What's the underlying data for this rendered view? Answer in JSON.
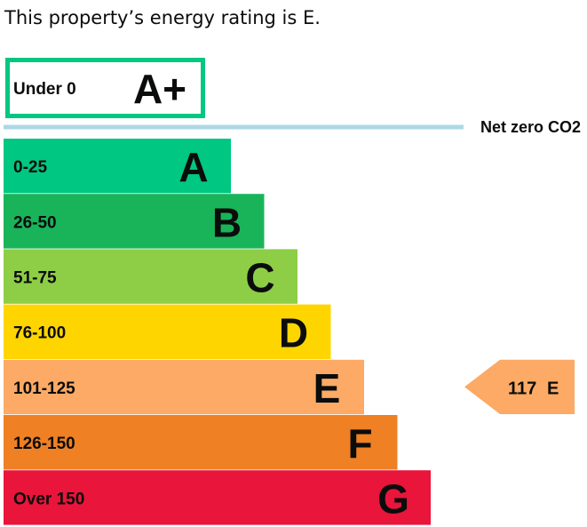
{
  "summary": "This property’s energy rating is E.",
  "chart_data": {
    "type": "bar",
    "title": "",
    "top_band": {
      "range": "Under 0",
      "letter": "A+",
      "color": "#00c781"
    },
    "net_zero_label": "Net zero CO2",
    "net_zero_color": "#add8e6",
    "bands": [
      {
        "range": "0-25",
        "letter": "A",
        "color": "#00c781",
        "level": 1
      },
      {
        "range": "26-50",
        "letter": "B",
        "color": "#19b459",
        "level": 2
      },
      {
        "range": "51-75",
        "letter": "C",
        "color": "#8dce46",
        "level": 3
      },
      {
        "range": "76-100",
        "letter": "D",
        "color": "#ffd500",
        "level": 4
      },
      {
        "range": "101-125",
        "letter": "E",
        "color": "#fcaa65",
        "level": 5
      },
      {
        "range": "126-150",
        "letter": "F",
        "color": "#ef8023",
        "level": 6
      },
      {
        "range": "Over 150",
        "letter": "G",
        "color": "#e9153b",
        "level": 7
      }
    ],
    "current": {
      "score": "117",
      "letter": "E",
      "band": "E",
      "color": "#fcaa65"
    }
  }
}
